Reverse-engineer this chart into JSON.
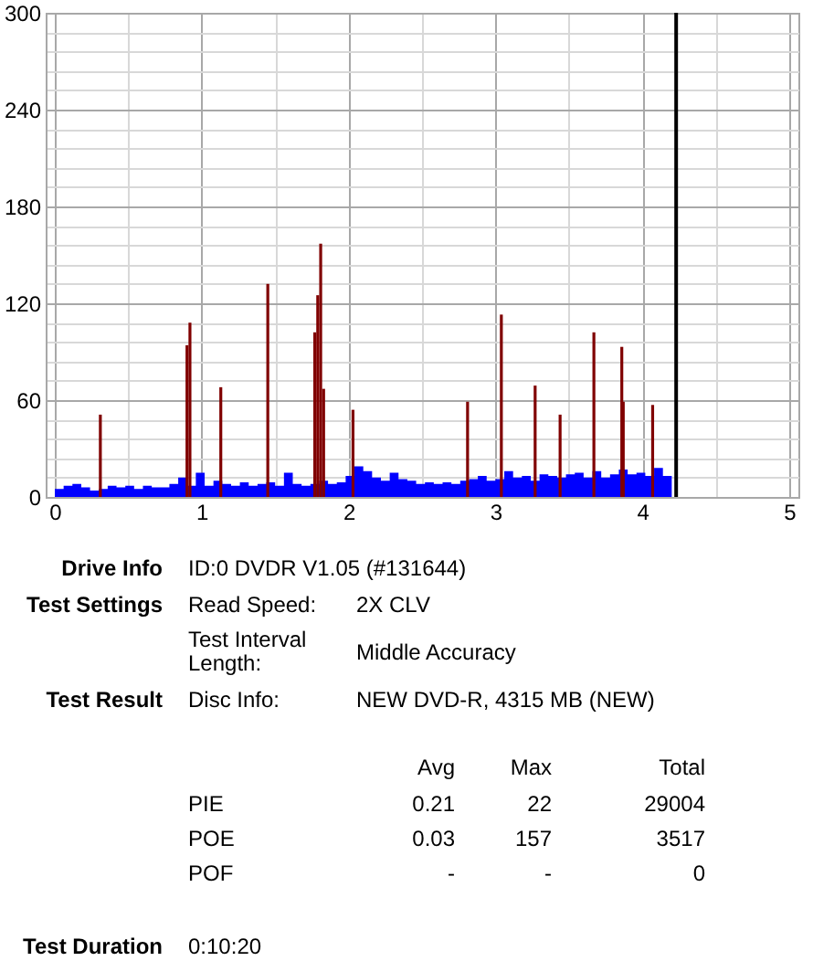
{
  "chart_data": {
    "type": "bar",
    "xlim": [
      0,
      5
    ],
    "xticks": [
      0,
      {
        "value": 0.5,
        "label": null
      },
      1,
      {
        "value": 1.5,
        "label": null
      },
      2,
      {
        "value": 2.5,
        "label": null
      },
      3,
      {
        "value": 3.5,
        "label": null
      },
      4,
      {
        "value": 4.5,
        "label": null
      },
      5
    ],
    "ylim": [
      0,
      300
    ],
    "yticks": [
      0,
      {
        "value": 12,
        "label": null
      },
      {
        "value": 24,
        "label": null
      },
      {
        "value": 36,
        "label": null
      },
      {
        "value": 48,
        "label": null
      },
      60,
      {
        "value": 72,
        "label": null
      },
      {
        "value": 84,
        "label": null
      },
      {
        "value": 96,
        "label": null
      },
      {
        "value": 108,
        "label": null
      },
      120,
      {
        "value": 132,
        "label": null
      },
      {
        "value": 144,
        "label": null
      },
      {
        "value": 156,
        "label": null
      },
      {
        "value": 168,
        "label": null
      },
      180,
      {
        "value": 192,
        "label": null
      },
      {
        "value": 204,
        "label": null
      },
      {
        "value": 216,
        "label": null
      },
      {
        "value": 228,
        "label": null
      },
      240,
      {
        "value": 252,
        "label": null
      },
      {
        "value": 264,
        "label": null
      },
      {
        "value": 276,
        "label": null
      },
      {
        "value": 288,
        "label": null
      },
      300
    ],
    "grid": true,
    "series": [
      {
        "type": "area",
        "color": "#0000ff",
        "x": [
          0,
          0.06,
          0.12,
          0.18,
          0.24,
          0.3,
          0.36,
          0.42,
          0.48,
          0.54,
          0.6,
          0.66,
          0.72,
          0.78,
          0.84,
          0.9,
          0.96,
          1.02,
          1.08,
          1.14,
          1.2,
          1.26,
          1.32,
          1.38,
          1.44,
          1.5,
          1.56,
          1.62,
          1.68,
          1.74,
          1.8,
          1.86,
          1.92,
          1.98,
          2.04,
          2.1,
          2.16,
          2.22,
          2.28,
          2.34,
          2.4,
          2.46,
          2.52,
          2.58,
          2.64,
          2.7,
          2.76,
          2.82,
          2.88,
          2.94,
          3,
          3.06,
          3.12,
          3.18,
          3.24,
          3.3,
          3.36,
          3.42,
          3.48,
          3.54,
          3.6,
          3.66,
          3.72,
          3.78,
          3.84,
          3.9,
          3.96,
          4.02,
          4.08,
          4.14,
          4.2
        ],
        "values": [
          5,
          7,
          8,
          6,
          4,
          5,
          7,
          6,
          7,
          5,
          7,
          6,
          6,
          8,
          12,
          7,
          15,
          7,
          10,
          8,
          7,
          9,
          7,
          8,
          9,
          7,
          15,
          8,
          7,
          8,
          10,
          8,
          9,
          13,
          19,
          16,
          12,
          10,
          15,
          11,
          10,
          8,
          9,
          8,
          9,
          8,
          10,
          11,
          13,
          10,
          11,
          16,
          12,
          13,
          10,
          14,
          13,
          12,
          14,
          15,
          12,
          16,
          12,
          14,
          17,
          14,
          15,
          13,
          18,
          13,
          14
        ]
      },
      {
        "color": "#800000",
        "x": [
          0.31,
          0.9,
          0.92,
          1.13,
          1.45,
          1.77,
          1.79,
          1.81,
          1.83,
          2.03,
          2.81,
          3.04,
          3.27,
          3.44,
          3.67,
          3.86,
          3.87,
          4.07
        ],
        "values": [
          51,
          94,
          108,
          68,
          132,
          102,
          125,
          157,
          67,
          54,
          59,
          113,
          69,
          51,
          102,
          93,
          59,
          57
        ]
      }
    ],
    "ref_lines": [
      {
        "axis": "x",
        "value": 4.23,
        "color": "#000000"
      }
    ],
    "annotations": [
      "Drive Info",
      "ID:0 DVDR V1.05 (#131644)",
      "Test Settings",
      "Read Speed:",
      "2X CLV",
      "Test Interval Length:",
      "Middle Accuracy",
      "Test Result",
      "Disc Info:",
      "NEW DVD-R, 4315 MB (NEW)",
      "Avg",
      "Max",
      "Total",
      "PIE",
      "0.21",
      "22",
      "29004",
      "POE",
      "0.03",
      "157",
      "3517",
      "POF",
      "-",
      "-",
      "0",
      "Test Duration",
      "0:10:20"
    ]
  }
}
